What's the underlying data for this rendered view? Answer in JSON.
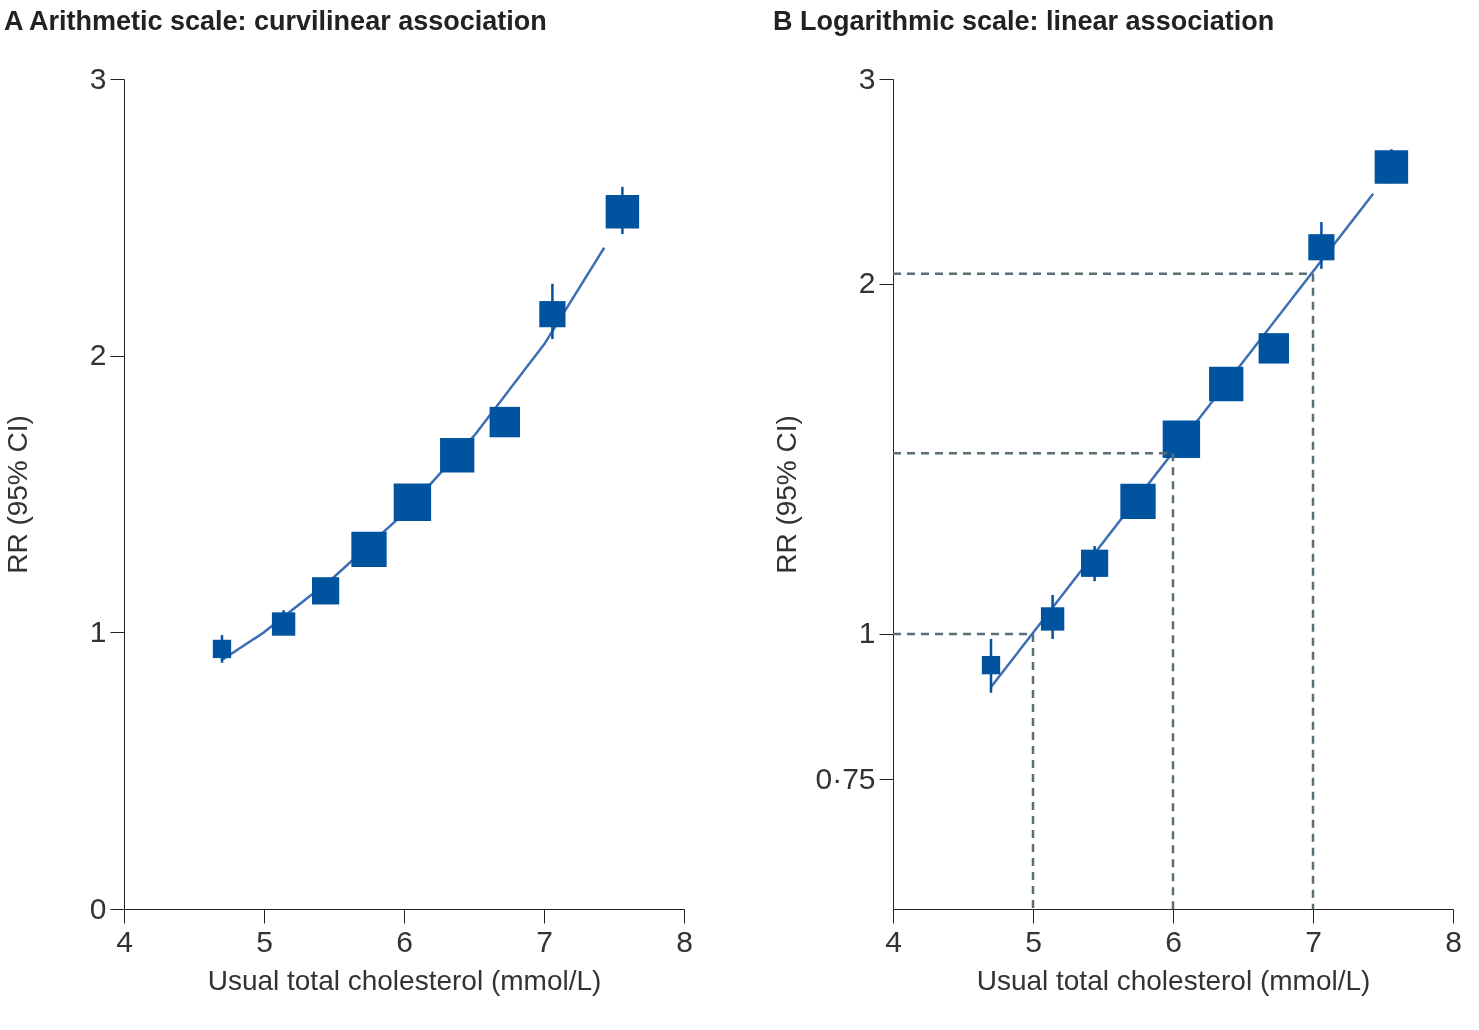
{
  "chart_data": [
    {
      "type": "bubble",
      "title": "A Arithmetic scale: curvilinear association",
      "xlabel": "Usual total cholesterol (mmol/L)",
      "ylabel": "RR (95% CI)",
      "xlim": [
        4,
        8
      ],
      "xticks": [
        4,
        5,
        6,
        7,
        8
      ],
      "ylim": [
        0,
        3
      ],
      "yticks": [
        0,
        1,
        2,
        3
      ],
      "marker": "square",
      "series": [
        {
          "type": "line",
          "marker": "none",
          "color": "#3c6eb4",
          "x": [
            4.7,
            5,
            5.5,
            6,
            6.5,
            7,
            7.43
          ],
          "values": [
            0.9,
            1,
            1.2,
            1.43,
            1.71,
            2.04,
            2.39
          ]
        },
        {
          "type": "bubble",
          "color": "#00539f",
          "x": [
            4.7,
            5.14,
            5.44,
            5.75,
            6.06,
            6.38,
            6.72,
            7.06,
            7.56
          ],
          "values": [
            0.94,
            1.03,
            1.15,
            1.3,
            1.47,
            1.64,
            1.76,
            2.15,
            2.52
          ],
          "sizes": [
            0.24,
            0.39,
            0.53,
            0.89,
            1,
            0.84,
            0.66,
            0.49,
            0.8
          ],
          "errors": [
            [
              0.89,
              0.99
            ],
            [
              0.99,
              1.08
            ],
            [
              1.11,
              1.19
            ],
            null,
            null,
            null,
            null,
            [
              2.06,
              2.26
            ],
            [
              2.44,
              2.61
            ]
          ]
        }
      ]
    },
    {
      "type": "bubble",
      "title": "B Logarithmic scale: linear association",
      "xlabel": "Usual total cholesterol (mmol/L)",
      "ylabel": "RR (95% CI)",
      "xlim": [
        4,
        8
      ],
      "xticks": [
        4,
        5,
        6,
        7,
        8
      ],
      "ylim": [
        0.58,
        3
      ],
      "yticks": [
        {
          "value": 0.75,
          "label": "0·75"
        },
        1,
        2,
        3
      ],
      "log": true,
      "marker": "square",
      "series": [
        {
          "type": "line",
          "marker": "none",
          "color": "#3c6eb4",
          "x": [
            4.7,
            7.43
          ],
          "values": [
            0.9,
            2.39
          ]
        },
        {
          "type": "bubble",
          "color": "#00539f",
          "x": [
            4.7,
            5.14,
            5.44,
            5.75,
            6.06,
            6.38,
            6.72,
            7.06,
            7.56
          ],
          "values": [
            0.94,
            1.03,
            1.15,
            1.3,
            1.47,
            1.64,
            1.76,
            2.15,
            2.52
          ],
          "sizes": [
            0.24,
            0.39,
            0.53,
            0.89,
            1,
            0.84,
            0.66,
            0.49,
            0.8
          ],
          "errors": [
            [
              0.89,
              0.99
            ],
            [
              0.99,
              1.08
            ],
            [
              1.11,
              1.19
            ],
            null,
            null,
            null,
            null,
            [
              2.06,
              2.26
            ],
            [
              2.44,
              2.61
            ]
          ]
        },
        {
          "type": "line",
          "marker": "none",
          "color": "#5b6f78",
          "line_style": "dashed",
          "x": [
            4,
            5,
            5
          ],
          "values": [
            1,
            1,
            0.58
          ]
        },
        {
          "type": "line",
          "marker": "none",
          "color": "#5b6f78",
          "line_style": "dashed",
          "x": [
            4,
            6,
            6
          ],
          "values": [
            1.43,
            1.43,
            0.58
          ]
        },
        {
          "type": "line",
          "marker": "none",
          "color": "#5b6f78",
          "line_style": "dashed",
          "x": [
            4,
            7,
            7
          ],
          "values": [
            2.04,
            2.04,
            0.58
          ]
        }
      ]
    }
  ]
}
